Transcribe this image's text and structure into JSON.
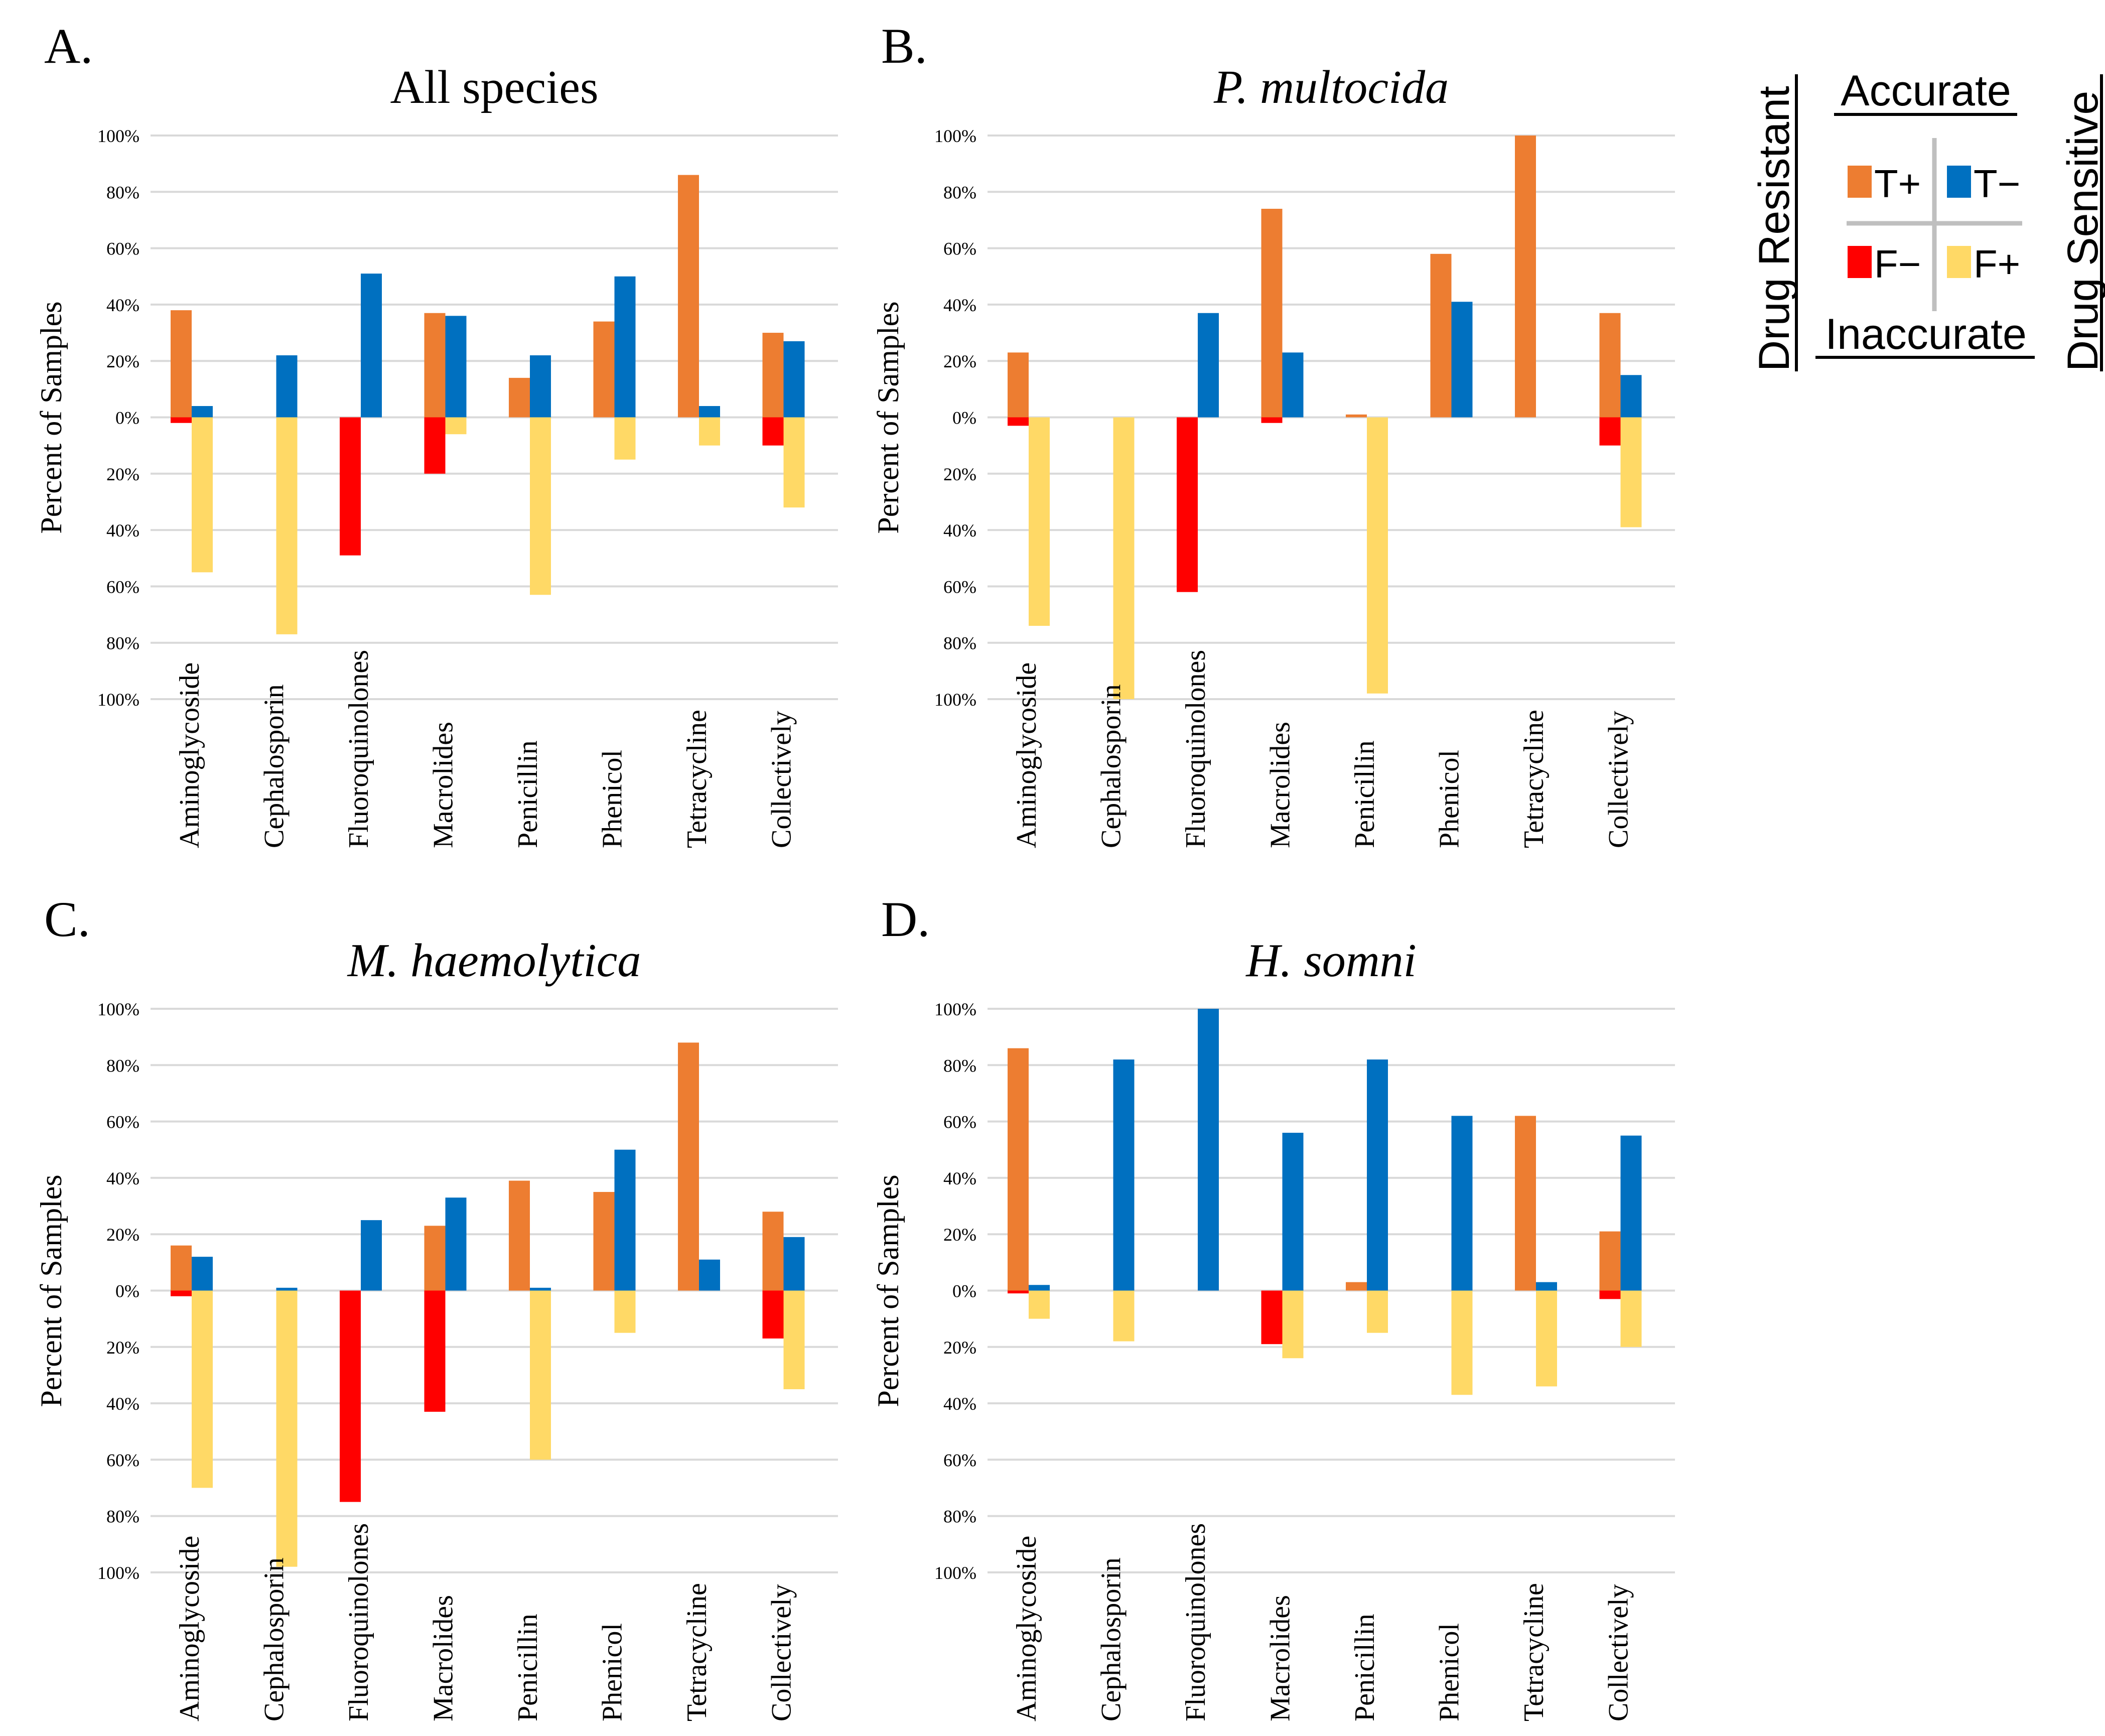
{
  "colors": {
    "tp": "#ED7D31",
    "tn": "#0070C0",
    "fn": "#FF0000",
    "fp": "#FFD966",
    "grid": "#D9D9D9",
    "legend_cross": "#BFBFBF",
    "text": "#000000"
  },
  "legend": {
    "accurate": "Accurate",
    "inaccurate": "Inaccurate",
    "drug_resistant": "Drug Resistant",
    "drug_sensitive": "Drug Sensitive",
    "tp": "T+",
    "tn": "T−",
    "fn": "F−",
    "fp": "F+"
  },
  "chart_data": [
    {
      "type": "bar",
      "panel": "A.",
      "title": "All species",
      "title_italic": false,
      "ylabel": "Percent of Samples",
      "yticks": [
        "100%",
        "80%",
        "60%",
        "40%",
        "20%",
        "0%",
        "20%",
        "40%",
        "60%",
        "80%",
        "100%"
      ],
      "ylim": [
        -100,
        100
      ],
      "categories": [
        "Aminoglycoside",
        "Cephalosporin",
        "Fluoroquinolones",
        "Macrolides",
        "Penicillin",
        "Phenicol",
        "Tetracycline",
        "Collectively"
      ],
      "series": [
        {
          "name": "T+",
          "values": [
            38,
            0,
            0,
            37,
            14,
            34,
            86,
            30
          ]
        },
        {
          "name": "T−",
          "values": [
            4,
            22,
            51,
            36,
            22,
            50,
            4,
            27
          ]
        },
        {
          "name": "F−",
          "values": [
            -2,
            0,
            -49,
            -20,
            0,
            0,
            0,
            -10
          ]
        },
        {
          "name": "F+",
          "values": [
            -55,
            -77,
            0,
            -6,
            -63,
            -15,
            -10,
            -32
          ]
        }
      ]
    },
    {
      "type": "bar",
      "panel": "B.",
      "title": "P. multocida",
      "title_italic": true,
      "ylabel": "Percent of Samples",
      "yticks": [
        "100%",
        "80%",
        "60%",
        "40%",
        "20%",
        "0%",
        "20%",
        "40%",
        "60%",
        "80%",
        "100%"
      ],
      "ylim": [
        -100,
        100
      ],
      "categories": [
        "Aminoglycoside",
        "Cephalosporin",
        "Fluoroquinolones",
        "Macrolides",
        "Penicillin",
        "Phenicol",
        "Tetracycline",
        "Collectively"
      ],
      "series": [
        {
          "name": "T+",
          "values": [
            23,
            0,
            0,
            74,
            1,
            58,
            100,
            37
          ]
        },
        {
          "name": "T−",
          "values": [
            0,
            0,
            37,
            23,
            0,
            41,
            0,
            15
          ]
        },
        {
          "name": "F−",
          "values": [
            -3,
            0,
            -62,
            -2,
            0,
            0,
            0,
            -10
          ]
        },
        {
          "name": "F+",
          "values": [
            -74,
            -100,
            0,
            0,
            -98,
            0,
            0,
            -39
          ]
        }
      ]
    },
    {
      "type": "bar",
      "panel": "C.",
      "title": "M. haemolytica",
      "title_italic": true,
      "ylabel": "Percent of Samples",
      "yticks": [
        "100%",
        "80%",
        "60%",
        "40%",
        "20%",
        "0%",
        "20%",
        "40%",
        "60%",
        "80%",
        "100%"
      ],
      "ylim": [
        -100,
        100
      ],
      "categories": [
        "Aminoglycoside",
        "Cephalosporin",
        "Fluoroquinolones",
        "Macrolides",
        "Penicillin",
        "Phenicol",
        "Tetracycline",
        "Collectively"
      ],
      "series": [
        {
          "name": "T+",
          "values": [
            16,
            0,
            0,
            23,
            39,
            35,
            88,
            28
          ]
        },
        {
          "name": "T−",
          "values": [
            12,
            1,
            25,
            33,
            1,
            50,
            11,
            19
          ]
        },
        {
          "name": "F−",
          "values": [
            -2,
            0,
            -75,
            -43,
            0,
            0,
            0,
            -17
          ]
        },
        {
          "name": "F+",
          "values": [
            -70,
            -98,
            0,
            0,
            -60,
            -15,
            0,
            -35
          ]
        }
      ]
    },
    {
      "type": "bar",
      "panel": "D.",
      "title": "H. somni",
      "title_italic": true,
      "ylabel": "Percent of Samples",
      "yticks": [
        "100%",
        "80%",
        "60%",
        "40%",
        "20%",
        "0%",
        "20%",
        "40%",
        "60%",
        "80%",
        "100%"
      ],
      "ylim": [
        -100,
        100
      ],
      "categories": [
        "Aminoglycoside",
        "Cephalosporin",
        "Fluoroquinolones",
        "Macrolides",
        "Penicillin",
        "Phenicol",
        "Tetracycline",
        "Collectively"
      ],
      "series": [
        {
          "name": "T+",
          "values": [
            86,
            0,
            0,
            0,
            3,
            0,
            62,
            21
          ]
        },
        {
          "name": "T−",
          "values": [
            2,
            82,
            100,
            56,
            82,
            62,
            3,
            55
          ]
        },
        {
          "name": "F−",
          "values": [
            -1,
            0,
            0,
            -19,
            0,
            0,
            0,
            -3
          ]
        },
        {
          "name": "F+",
          "values": [
            -10,
            -18,
            0,
            -24,
            -15,
            -37,
            -34,
            -20
          ]
        }
      ]
    }
  ]
}
